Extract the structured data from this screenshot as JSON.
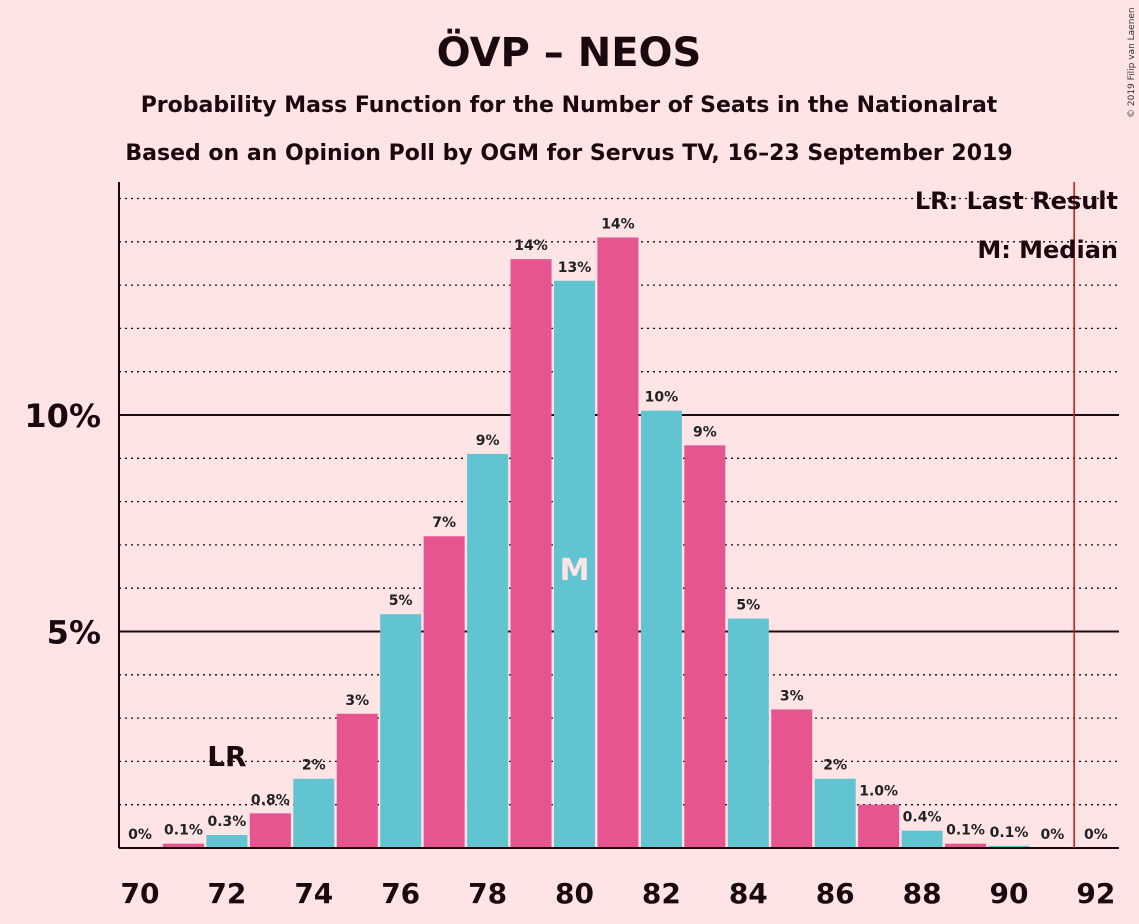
{
  "colors": {
    "background": "#FFE4E6",
    "bar_pink": "#E75591",
    "bar_teal": "#62C3D1",
    "last_result_line": "#CC1111",
    "text": "#1a0a10"
  },
  "copyright": "© 2019 Filip van Laenen",
  "chart_data": {
    "type": "bar",
    "title": "ÖVP – NEOS",
    "subtitle": "Probability Mass Function for the Number of Seats in the Nationalrat",
    "subtitle2": "Based on an Opinion Poll by OGM for Servus TV, 16–23 September 2019",
    "x": [
      70,
      71,
      72,
      73,
      74,
      75,
      76,
      77,
      78,
      79,
      80,
      81,
      82,
      83,
      84,
      85,
      86,
      87,
      88,
      89,
      90,
      91,
      92
    ],
    "values": [
      0,
      0.1,
      0.3,
      0.8,
      1.6,
      3.1,
      5.4,
      7.2,
      9.1,
      13.6,
      13.1,
      14.1,
      10.1,
      9.3,
      5.3,
      3.2,
      1.6,
      1.0,
      0.4,
      0.1,
      0.05,
      0,
      0
    ],
    "value_labels": [
      "0%",
      "0.1%",
      "0.3%",
      "0.8%",
      "2%",
      "3%",
      "5%",
      "7%",
      "9%",
      "14%",
      "13%",
      "14%",
      "10%",
      "9%",
      "5%",
      "3%",
      "2%",
      "1.0%",
      "0.4%",
      "0.1%",
      "0.1%",
      "0%",
      "0%"
    ],
    "x_tick_labels": [
      "70",
      "72",
      "74",
      "76",
      "78",
      "80",
      "82",
      "84",
      "86",
      "88",
      "90",
      "92"
    ],
    "y_tick_labels": [
      "5%",
      "10%"
    ],
    "y_ticks": [
      5,
      10
    ],
    "ylim": [
      0,
      15.3
    ],
    "grid": "dotted every 1%, solid at 5% and 10%",
    "legend": {
      "position": "top-right",
      "last_result": "LR: Last Result",
      "median": "M: Median"
    },
    "last_result_seat": 72,
    "last_result_label": "LR",
    "median_seat": 80,
    "median_label": "M",
    "majority_line_seat": 91.5
  }
}
